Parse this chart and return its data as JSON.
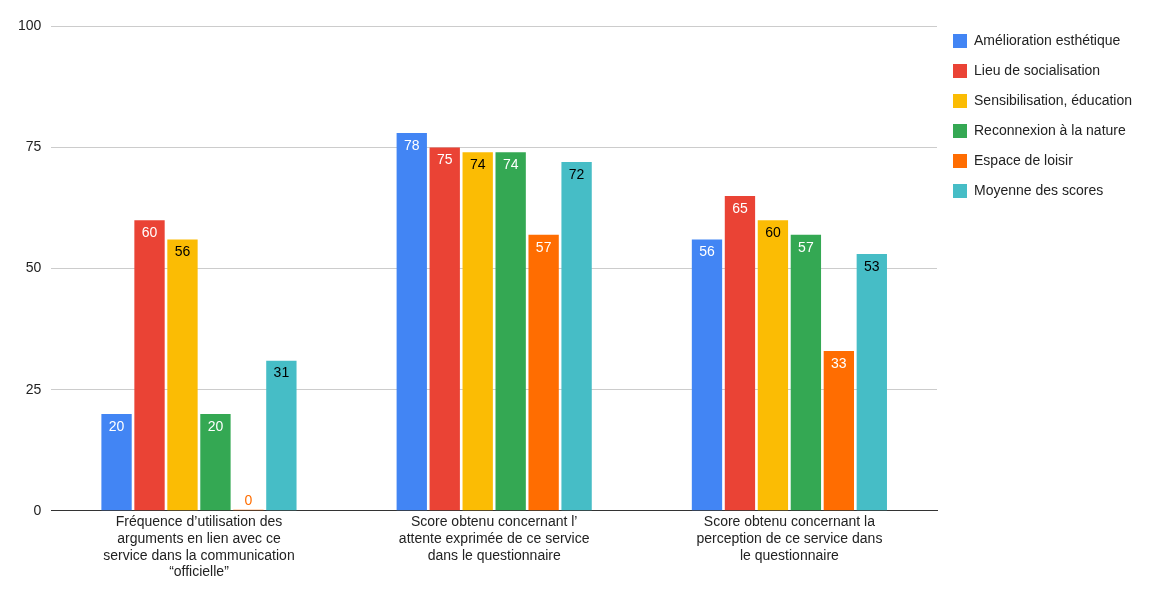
{
  "chart_data": {
    "type": "bar",
    "categories": [
      "Fréquence d’utilisation des arguments en lien avec ce service dans la communication “officielle”",
      "Score obtenu concernant l’ attente exprimée de ce service dans le questionnaire",
      "Score obtenu concernant la perception de ce service dans le questionnaire"
    ],
    "series": [
      {
        "name": "Amélioration esthétique",
        "color": "#4285f4",
        "values": [
          20,
          78,
          56
        ]
      },
      {
        "name": "Lieu de socialisation",
        "color": "#ea4335",
        "values": [
          60,
          75,
          65
        ]
      },
      {
        "name": "Sensibilisation, éducation",
        "color": "#fbbc04",
        "values": [
          56,
          74,
          60
        ]
      },
      {
        "name": "Reconnexion à la nature",
        "color": "#34a853",
        "values": [
          20,
          74,
          57
        ]
      },
      {
        "name": "Espace de loisir",
        "color": "#ff6d01",
        "values": [
          0,
          57,
          33
        ]
      },
      {
        "name": "Moyenne des scores",
        "color": "#46bdc6",
        "values": [
          31,
          72,
          53
        ]
      }
    ],
    "ylim": [
      0,
      100
    ],
    "yticks": [
      0,
      25,
      50,
      75,
      100
    ],
    "grid": "y",
    "legend": "right",
    "data_labels": true
  }
}
